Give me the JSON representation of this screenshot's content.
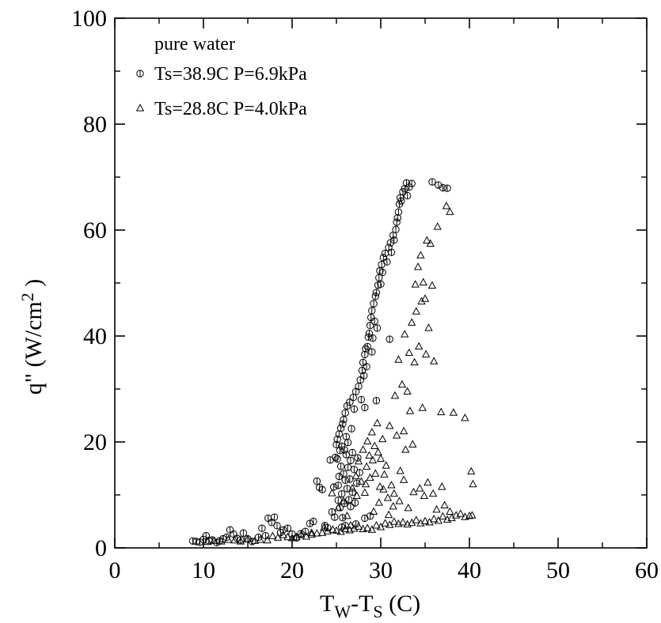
{
  "chart_data": {
    "type": "scatter",
    "title": "",
    "xlabel": {
      "main": "T",
      "sub1": "W",
      "mid": "-T",
      "sub2": "S",
      "tail": " (C)"
    },
    "ylabel": {
      "main": "q\"  (W/cm",
      "sup": "2",
      "tail": " )"
    },
    "xlim": [
      0,
      60
    ],
    "ylim": [
      0,
      100
    ],
    "x_ticks": [
      0,
      10,
      20,
      30,
      40,
      50,
      60
    ],
    "y_ticks": [
      0,
      20,
      40,
      60,
      80,
      100
    ],
    "x_tick_labels": [
      "0",
      "10",
      "20",
      "30",
      "40",
      "50",
      "60"
    ],
    "y_tick_labels": [
      "0",
      "20",
      "40",
      "60",
      "80",
      "100"
    ],
    "grid": false,
    "legend_title": "pure water",
    "legend_position": "top-left",
    "series": [
      {
        "name": "Ts=38.9C P=6.9kPa",
        "marker": "circle",
        "points": [
          [
            8.8,
            1.3
          ],
          [
            9.2,
            1.2
          ],
          [
            9.6,
            1.1
          ],
          [
            10.0,
            1.6
          ],
          [
            10.3,
            2.3
          ],
          [
            10.6,
            1.4
          ],
          [
            11.0,
            1.5
          ],
          [
            11.5,
            1.0
          ],
          [
            11.8,
            1.3
          ],
          [
            12.2,
            1.7
          ],
          [
            12.6,
            2.0
          ],
          [
            13.0,
            3.4
          ],
          [
            13.4,
            2.6
          ],
          [
            13.8,
            1.8
          ],
          [
            14.2,
            1.5
          ],
          [
            14.5,
            2.8
          ],
          [
            15.0,
            1.7
          ],
          [
            15.5,
            1.2
          ],
          [
            16.2,
            2.0
          ],
          [
            16.6,
            3.7
          ],
          [
            17.0,
            2.3
          ],
          [
            17.3,
            5.6
          ],
          [
            17.7,
            4.8
          ],
          [
            18.0,
            5.8
          ],
          [
            18.3,
            4.2
          ],
          [
            18.7,
            2.9
          ],
          [
            19.0,
            3.4
          ],
          [
            19.5,
            3.7
          ],
          [
            20.0,
            2.6
          ],
          [
            20.5,
            1.9
          ],
          [
            21.0,
            2.7
          ],
          [
            21.5,
            3.1
          ],
          [
            22.0,
            4.6
          ],
          [
            22.4,
            5.0
          ],
          [
            22.8,
            12.6
          ],
          [
            23.1,
            11.4
          ],
          [
            23.4,
            11.0
          ],
          [
            23.7,
            4.2
          ],
          [
            24.0,
            3.8
          ],
          [
            24.3,
            16.6
          ],
          [
            24.5,
            6.8
          ],
          [
            24.7,
            11.5
          ],
          [
            24.9,
            17.1
          ],
          [
            25.0,
            19.5
          ],
          [
            25.1,
            20.5
          ],
          [
            25.1,
            16.8
          ],
          [
            25.2,
            11.8
          ],
          [
            25.2,
            9.0
          ],
          [
            25.3,
            21.5
          ],
          [
            25.3,
            13.5
          ],
          [
            25.4,
            18.4
          ],
          [
            25.4,
            7.6
          ],
          [
            25.5,
            22.6
          ],
          [
            25.5,
            15.4
          ],
          [
            25.6,
            19.2
          ],
          [
            25.6,
            10.2
          ],
          [
            25.7,
            23.4
          ],
          [
            25.7,
            5.7
          ],
          [
            25.8,
            14.0
          ],
          [
            25.8,
            24.2
          ],
          [
            25.9,
            18.5
          ],
          [
            25.9,
            8.4
          ],
          [
            26.0,
            12.8
          ],
          [
            26.0,
            25.5
          ],
          [
            26.1,
            17.6
          ],
          [
            26.1,
            21.0
          ],
          [
            26.2,
            11.2
          ],
          [
            26.2,
            26.8
          ],
          [
            26.3,
            15.2
          ],
          [
            26.3,
            19.9
          ],
          [
            26.4,
            9.1
          ],
          [
            26.5,
            13.0
          ],
          [
            26.5,
            27.5
          ],
          [
            26.6,
            16.5
          ],
          [
            26.6,
            7.8
          ],
          [
            26.7,
            22.5
          ],
          [
            26.8,
            18.0
          ],
          [
            26.8,
            10.5
          ],
          [
            26.9,
            28.4
          ],
          [
            27.0,
            14.8
          ],
          [
            27.0,
            26.2
          ],
          [
            27.1,
            8.5
          ],
          [
            27.2,
            29.5
          ],
          [
            27.3,
            12.2
          ],
          [
            27.4,
            17.0
          ],
          [
            27.5,
            30.5
          ],
          [
            27.6,
            14.2
          ],
          [
            27.7,
            31.7
          ],
          [
            27.8,
            28.0
          ],
          [
            27.9,
            33.5
          ],
          [
            28.0,
            35.0
          ],
          [
            28.1,
            32.5
          ],
          [
            28.2,
            36.5
          ],
          [
            28.2,
            26.5
          ],
          [
            28.3,
            37.6
          ],
          [
            28.4,
            34.2
          ],
          [
            28.5,
            38.0
          ],
          [
            28.6,
            39.8
          ],
          [
            28.7,
            40.5
          ],
          [
            28.8,
            42.0
          ],
          [
            28.9,
            43.5
          ],
          [
            29.0,
            44.8
          ],
          [
            29.0,
            37.0
          ],
          [
            29.1,
            39.6
          ],
          [
            29.2,
            46.1
          ],
          [
            29.3,
            42.8
          ],
          [
            29.4,
            47.5
          ],
          [
            29.5,
            48.2
          ],
          [
            29.6,
            41.5
          ],
          [
            29.7,
            49.6
          ],
          [
            29.8,
            51.0
          ],
          [
            29.9,
            52.3
          ],
          [
            30.0,
            49.8
          ],
          [
            30.1,
            53.5
          ],
          [
            30.2,
            52.0
          ],
          [
            30.3,
            54.8
          ],
          [
            30.5,
            55.6
          ],
          [
            30.7,
            54.0
          ],
          [
            30.9,
            56.7
          ],
          [
            31.1,
            57.6
          ],
          [
            31.2,
            55.8
          ],
          [
            31.4,
            59.0
          ],
          [
            31.5,
            58.1
          ],
          [
            31.7,
            60.1
          ],
          [
            31.8,
            61.5
          ],
          [
            31.9,
            62.3
          ],
          [
            32.0,
            63.4
          ],
          [
            32.1,
            64.9
          ],
          [
            32.2,
            66.1
          ],
          [
            32.3,
            65.5
          ],
          [
            32.5,
            67.2
          ],
          [
            32.7,
            67.8
          ],
          [
            32.9,
            68.9
          ],
          [
            33.0,
            66.5
          ],
          [
            33.2,
            68.1
          ],
          [
            33.5,
            68.8
          ],
          [
            35.8,
            69.1
          ],
          [
            36.5,
            68.5
          ],
          [
            37.0,
            68.0
          ],
          [
            37.5,
            67.9
          ],
          [
            31.0,
            39.4
          ],
          [
            29.5,
            27.8
          ],
          [
            24.8,
            5.8
          ],
          [
            25.6,
            3.9
          ],
          [
            26.0,
            4.2
          ],
          [
            27.2,
            4.5
          ],
          [
            28.2,
            5.6
          ],
          [
            28.8,
            6.0
          ]
        ]
      },
      {
        "name": "Ts=28.8C P=4.0kPa",
        "marker": "triangle",
        "points": [
          [
            10.5,
            1.1
          ],
          [
            11.2,
            1.3
          ],
          [
            12.0,
            1.2
          ],
          [
            12.8,
            1.5
          ],
          [
            13.5,
            1.4
          ],
          [
            14.2,
            1.2
          ],
          [
            15.0,
            1.6
          ],
          [
            15.8,
            1.3
          ],
          [
            16.4,
            1.5
          ],
          [
            17.2,
            1.4
          ],
          [
            17.8,
            2.2
          ],
          [
            18.4,
            1.9
          ],
          [
            19.0,
            2.4
          ],
          [
            19.5,
            2.0
          ],
          [
            20.0,
            1.8
          ],
          [
            20.5,
            2.0
          ],
          [
            21.0,
            2.4
          ],
          [
            21.6,
            2.1
          ],
          [
            22.2,
            2.5
          ],
          [
            22.8,
            2.7
          ],
          [
            23.4,
            2.8
          ],
          [
            24.0,
            3.1
          ],
          [
            24.6,
            3.4
          ],
          [
            25.0,
            3.2
          ],
          [
            25.5,
            3.0
          ],
          [
            26.0,
            3.5
          ],
          [
            26.5,
            3.3
          ],
          [
            27.0,
            3.6
          ],
          [
            27.5,
            4.0
          ],
          [
            28.0,
            3.5
          ],
          [
            28.5,
            3.7
          ],
          [
            29.0,
            3.4
          ],
          [
            29.5,
            4.2
          ],
          [
            30.0,
            3.9
          ],
          [
            30.5,
            4.6
          ],
          [
            31.0,
            4.3
          ],
          [
            31.5,
            4.9
          ],
          [
            32.0,
            4.5
          ],
          [
            32.5,
            4.8
          ],
          [
            33.0,
            4.4
          ],
          [
            33.5,
            4.7
          ],
          [
            34.0,
            5.2
          ],
          [
            34.5,
            4.6
          ],
          [
            35.0,
            5.0
          ],
          [
            35.5,
            4.8
          ],
          [
            36.0,
            5.4
          ],
          [
            36.5,
            5.1
          ],
          [
            37.0,
            5.9
          ],
          [
            37.5,
            5.3
          ],
          [
            38.0,
            5.6
          ],
          [
            38.5,
            6.1
          ],
          [
            39.0,
            6.4
          ],
          [
            39.5,
            5.8
          ],
          [
            40.0,
            6.0
          ],
          [
            40.3,
            6.1
          ],
          [
            26.8,
            11.2
          ],
          [
            27.2,
            13.5
          ],
          [
            27.5,
            16.3
          ],
          [
            27.8,
            12.5
          ],
          [
            28.0,
            18.5
          ],
          [
            28.2,
            10.4
          ],
          [
            28.4,
            15.3
          ],
          [
            28.5,
            20.1
          ],
          [
            28.7,
            17.4
          ],
          [
            28.8,
            13.2
          ],
          [
            29.0,
            21.8
          ],
          [
            29.1,
            16.5
          ],
          [
            29.3,
            19.2
          ],
          [
            29.4,
            14.0
          ],
          [
            29.6,
            23.5
          ],
          [
            29.7,
            18.0
          ],
          [
            29.9,
            11.5
          ],
          [
            30.0,
            16.8
          ],
          [
            30.2,
            20.5
          ],
          [
            30.4,
            13.8
          ],
          [
            30.6,
            15.5
          ],
          [
            30.8,
            9.4
          ],
          [
            31.0,
            23.0
          ],
          [
            31.2,
            11.8
          ],
          [
            31.4,
            7.8
          ],
          [
            31.6,
            28.7
          ],
          [
            31.8,
            21.2
          ],
          [
            32.0,
            35.5
          ],
          [
            32.2,
            14.5
          ],
          [
            32.4,
            30.8
          ],
          [
            32.6,
            22.0
          ],
          [
            32.7,
            40.3
          ],
          [
            32.8,
            18.5
          ],
          [
            33.0,
            29.5
          ],
          [
            33.2,
            36.8
          ],
          [
            33.3,
            25.8
          ],
          [
            33.5,
            42.5
          ],
          [
            33.6,
            19.5
          ],
          [
            33.8,
            35.0
          ],
          [
            33.9,
            49.7
          ],
          [
            34.0,
            44.6
          ],
          [
            34.2,
            53.0
          ],
          [
            34.3,
            38.0
          ],
          [
            34.5,
            55.2
          ],
          [
            34.6,
            46.5
          ],
          [
            34.7,
            26.4
          ],
          [
            34.8,
            50.1
          ],
          [
            35.0,
            47.0
          ],
          [
            35.1,
            36.5
          ],
          [
            35.2,
            58.0
          ],
          [
            35.4,
            41.5
          ],
          [
            35.6,
            57.4
          ],
          [
            35.8,
            49.5
          ],
          [
            36.0,
            35.2
          ],
          [
            36.4,
            60.6
          ],
          [
            36.8,
            25.6
          ],
          [
            37.4,
            64.5
          ],
          [
            37.8,
            63.4
          ],
          [
            38.2,
            25.5
          ],
          [
            39.5,
            24.5
          ],
          [
            40.2,
            14.4
          ],
          [
            40.4,
            12.0
          ],
          [
            22.2,
            2.8
          ],
          [
            23.6,
            3.8
          ],
          [
            24.5,
            10.3
          ],
          [
            25.2,
            7.5
          ],
          [
            25.8,
            8.8
          ],
          [
            26.2,
            6.0
          ],
          [
            26.6,
            4.2
          ],
          [
            27.3,
            9.8
          ],
          [
            28.3,
            12.0
          ],
          [
            29.2,
            6.8
          ],
          [
            29.8,
            8.5
          ],
          [
            30.3,
            11.0
          ],
          [
            30.9,
            6.2
          ],
          [
            31.5,
            10.2
          ],
          [
            32.1,
            8.8
          ],
          [
            32.6,
            12.8
          ],
          [
            33.1,
            7.5
          ],
          [
            33.7,
            10.5
          ],
          [
            34.4,
            11.2
          ],
          [
            34.9,
            9.8
          ],
          [
            35.3,
            12.3
          ],
          [
            35.9,
            10.2
          ],
          [
            36.3,
            7.2
          ],
          [
            36.9,
            11.5
          ],
          [
            37.2,
            8.0
          ],
          [
            37.8,
            6.8
          ]
        ]
      }
    ]
  }
}
